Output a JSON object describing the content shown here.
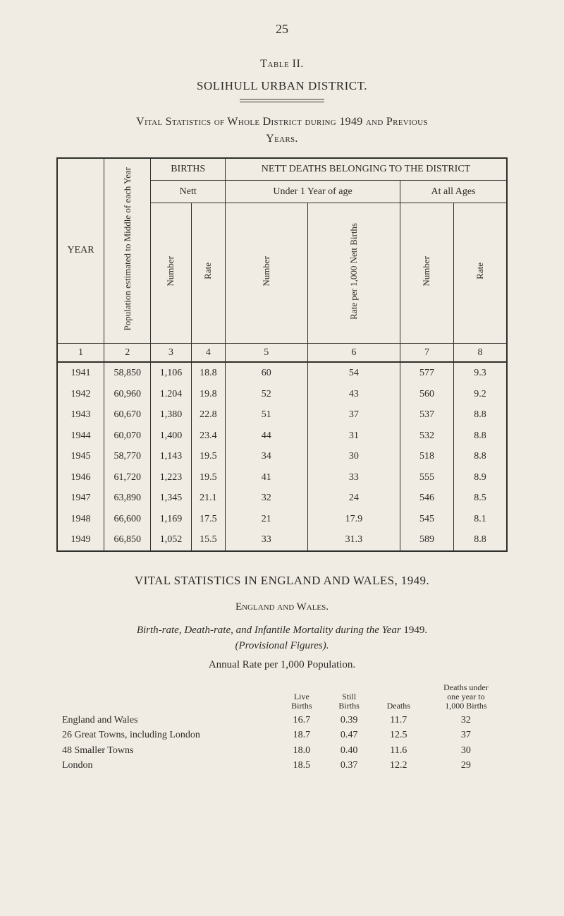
{
  "page_number": "25",
  "table_label": "Table II.",
  "district_title": "SOLIHULL URBAN DISTRICT.",
  "vital_title_line1": "Vital Statistics of Whole District during 1949 and Previous",
  "vital_title_line2": "Years.",
  "main_table": {
    "type": "table",
    "background_color": "#f1ece3",
    "border_color": "#2f2f2b",
    "font_size": 14,
    "headers": {
      "year": "YEAR",
      "population": "Population estimated to Middle of each Year",
      "births": "BIRTHS",
      "nett": "Nett",
      "nett_deaths": "NETT DEATHS BELONGING TO THE DISTRICT",
      "under1": "Under 1 Year of age",
      "all_ages": "At all Ages",
      "number": "Number",
      "rate": "Rate",
      "rate_per_1000": "Rate per 1,000 Nett Births"
    },
    "column_numbers": [
      "1",
      "2",
      "3",
      "4",
      "5",
      "6",
      "7",
      "8"
    ],
    "rows": [
      {
        "year": "1941",
        "pop": "58,850",
        "b_num": "1,106",
        "b_rate": "18.8",
        "u1_num": "60",
        "u1_rate": "54",
        "all_num": "577",
        "all_rate": "9.3"
      },
      {
        "year": "1942",
        "pop": "60,960",
        "b_num": "1.204",
        "b_rate": "19.8",
        "u1_num": "52",
        "u1_rate": "43",
        "all_num": "560",
        "all_rate": "9.2"
      },
      {
        "year": "1943",
        "pop": "60,670",
        "b_num": "1,380",
        "b_rate": "22.8",
        "u1_num": "51",
        "u1_rate": "37",
        "all_num": "537",
        "all_rate": "8.8"
      },
      {
        "year": "1944",
        "pop": "60,070",
        "b_num": "1,400",
        "b_rate": "23.4",
        "u1_num": "44",
        "u1_rate": "31",
        "all_num": "532",
        "all_rate": "8.8"
      },
      {
        "year": "1945",
        "pop": "58,770",
        "b_num": "1,143",
        "b_rate": "19.5",
        "u1_num": "34",
        "u1_rate": "30",
        "all_num": "518",
        "all_rate": "8.8"
      },
      {
        "year": "1946",
        "pop": "61,720",
        "b_num": "1,223",
        "b_rate": "19.5",
        "u1_num": "41",
        "u1_rate": "33",
        "all_num": "555",
        "all_rate": "8.9"
      },
      {
        "year": "1947",
        "pop": "63,890",
        "b_num": "1,345",
        "b_rate": "21.1",
        "u1_num": "32",
        "u1_rate": "24",
        "all_num": "546",
        "all_rate": "8.5"
      },
      {
        "year": "1948",
        "pop": "66,600",
        "b_num": "1,169",
        "b_rate": "17.5",
        "u1_num": "21",
        "u1_rate": "17.9",
        "all_num": "545",
        "all_rate": "8.1"
      },
      {
        "year": "1949",
        "pop": "66,850",
        "b_num": "1,052",
        "b_rate": "15.5",
        "u1_num": "33",
        "u1_rate": "31.3",
        "all_num": "589",
        "all_rate": "8.8"
      }
    ]
  },
  "section2_title": "VITAL STATISTICS IN ENGLAND AND WALES, 1949.",
  "eng_wales_heading": "England and Wales.",
  "birth_rate_para_prefix": "Birth-rate, Death-rate, and Infantile Mortality during the Year",
  "birth_rate_para_year": "1949.",
  "provisional": "(Provisional Figures).",
  "annual_rate_line": "Annual Rate per 1,000 Population.",
  "rates_table": {
    "type": "table",
    "font_size": 14,
    "columns": {
      "c1": "",
      "c2_l1": "Live",
      "c2_l2": "Births",
      "c3_l1": "Still",
      "c3_l2": "Births",
      "c4": "Deaths",
      "c5_l1": "Deaths under",
      "c5_l2": "one year to",
      "c5_l3": "1,000 Births"
    },
    "rows": [
      {
        "label": "England and Wales",
        "live": "16.7",
        "still": "0.39",
        "deaths": "11.7",
        "du": "32"
      },
      {
        "label": "26 Great Towns, including London",
        "live": "18.7",
        "still": "0.47",
        "deaths": "12.5",
        "du": "37"
      },
      {
        "label": "48 Smaller Towns",
        "live": "18.0",
        "still": "0.40",
        "deaths": "11.6",
        "du": "30"
      },
      {
        "label": "London",
        "live": "18.5",
        "still": "0.37",
        "deaths": "12.2",
        "du": "29"
      }
    ]
  }
}
